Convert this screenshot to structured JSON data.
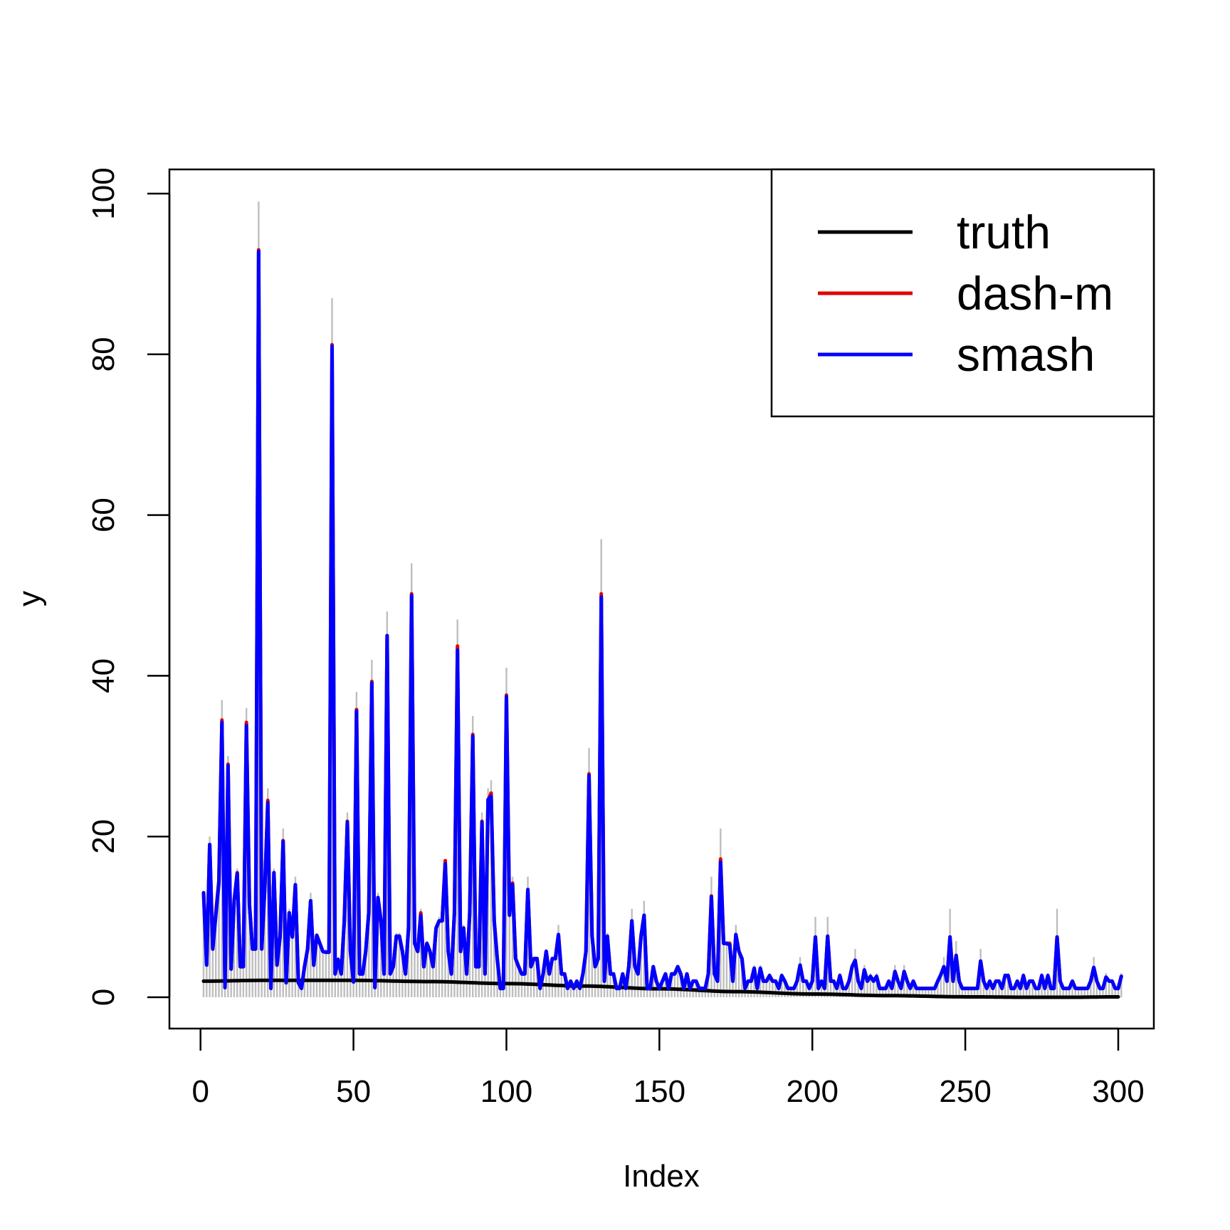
{
  "chart_data": {
    "type": "line",
    "xlabel": "Index",
    "ylabel": "y",
    "xlim": [
      1,
      300
    ],
    "ylim": [
      0,
      100
    ],
    "x_ticks": [
      0,
      50,
      100,
      150,
      200,
      250,
      300
    ],
    "y_ticks": [
      0,
      20,
      40,
      60,
      80,
      100
    ],
    "legend_position": "top-right",
    "observed": {
      "type": "histogram-bars",
      "color": "#bebebe",
      "values": [
        13,
        4,
        20,
        8,
        12,
        15,
        37,
        1,
        30,
        4,
        12,
        16,
        4,
        4,
        36,
        12,
        6,
        6,
        99,
        6,
        14,
        26,
        1,
        16,
        4,
        8,
        21,
        2,
        11,
        8,
        15,
        2,
        1,
        4,
        6,
        13,
        4,
        8,
        7,
        6,
        6,
        6,
        87,
        3,
        5,
        3,
        10,
        23,
        6,
        2,
        38,
        3,
        3,
        6,
        11,
        42,
        1,
        13,
        10,
        3,
        48,
        3,
        4,
        8,
        8,
        6,
        3,
        9,
        54,
        7,
        6,
        11,
        4,
        7,
        6,
        4,
        9,
        10,
        10,
        17,
        6,
        3,
        11,
        47,
        6,
        9,
        3,
        11,
        35,
        4,
        4,
        23,
        3,
        26,
        27,
        10,
        5,
        1,
        1,
        41,
        10,
        15,
        5,
        4,
        3,
        3,
        15,
        4,
        5,
        5,
        1,
        3,
        6,
        3,
        5,
        5,
        9,
        3,
        3,
        1,
        2,
        1,
        2,
        1,
        3,
        6,
        31,
        8,
        4,
        5,
        57,
        2,
        8,
        3,
        3,
        1,
        1,
        3,
        1,
        4,
        11,
        4,
        3,
        8,
        12,
        1,
        1,
        4,
        2,
        1,
        2,
        3,
        1,
        3,
        3,
        4,
        3,
        1,
        3,
        1,
        2,
        2,
        1,
        1,
        1,
        3,
        15,
        3,
        2,
        21,
        7,
        7,
        7,
        2,
        9,
        6,
        5,
        1,
        2,
        2,
        4,
        1,
        4,
        2,
        2,
        3,
        2,
        2,
        1,
        3,
        2,
        1,
        1,
        1,
        2,
        5,
        2,
        2,
        1,
        2,
        10,
        1,
        2,
        1,
        10,
        2,
        2,
        1,
        3,
        1,
        1,
        2,
        4,
        6,
        2,
        1,
        4,
        2,
        3,
        2,
        3,
        1,
        1,
        1,
        2,
        1,
        4,
        2,
        1,
        4,
        2,
        1,
        2,
        1,
        1,
        1,
        1,
        1,
        1,
        1,
        2,
        3,
        5,
        2,
        11,
        2,
        7,
        2,
        1,
        1,
        1,
        1,
        1,
        1,
        6,
        2,
        1,
        2,
        1,
        2,
        2,
        1,
        3,
        3,
        1,
        1,
        2,
        1,
        3,
        1,
        2,
        2,
        1,
        1,
        3,
        1,
        3,
        1,
        1,
        11,
        2,
        1,
        1,
        1,
        2,
        1,
        1,
        1,
        1,
        1,
        2,
        5,
        2,
        1,
        1,
        3,
        2,
        2,
        1,
        1,
        3
      ]
    },
    "series": [
      {
        "name": "truth",
        "color": "#000000",
        "kind": "smooth",
        "knots_x": [
          1,
          20,
          50,
          75,
          100,
          125,
          150,
          175,
          200,
          225,
          250,
          270,
          285,
          300
        ],
        "knots_y": [
          2.0,
          2.1,
          2.1,
          1.95,
          1.7,
          1.4,
          1.05,
          0.7,
          0.4,
          0.2,
          0.05,
          0.0,
          0.0,
          0.05
        ]
      },
      {
        "name": "dash-m",
        "color": "#e00000",
        "values": [
          13,
          4.2,
          19,
          6,
          10.5,
          14.5,
          34.5,
          1.2,
          29,
          3.5,
          12,
          15.5,
          3.8,
          3.8,
          34.2,
          11.5,
          6,
          6,
          93,
          6,
          13.5,
          24.5,
          1.1,
          15.5,
          4,
          7.5,
          19.5,
          1.8,
          10.5,
          7.5,
          14,
          1.8,
          1.1,
          3.8,
          6,
          12,
          4,
          7.7,
          6.7,
          5.7,
          5.6,
          5.6,
          81.2,
          2.9,
          4.7,
          2.9,
          9.5,
          21.9,
          5.7,
          1.9,
          35.8,
          2.9,
          2.9,
          5.7,
          10.5,
          39.3,
          1.2,
          12.4,
          9.5,
          2.9,
          45,
          2.9,
          3.8,
          7.6,
          7.6,
          5.7,
          2.9,
          8.6,
          50.2,
          6.7,
          5.7,
          10.5,
          3.8,
          6.7,
          5.7,
          3.8,
          8.6,
          9.5,
          9.5,
          17,
          5.7,
          2.9,
          10.5,
          43.7,
          5.7,
          8.6,
          2.9,
          10.5,
          32.7,
          3.8,
          3.8,
          21.9,
          2.9,
          24.5,
          25.4,
          9.5,
          4.8,
          1.1,
          1.1,
          37.6,
          10.5,
          14.2,
          4.8,
          3.8,
          2.9,
          2.9,
          13.4,
          3.8,
          4.8,
          4.8,
          1.1,
          2.9,
          5.7,
          2.9,
          4.8,
          4.8,
          7.8,
          2.9,
          2.9,
          1.1,
          2,
          1.1,
          2,
          1.1,
          2.9,
          5.7,
          27.8,
          7.6,
          3.8,
          4.8,
          50.2,
          2,
          7.6,
          2.9,
          2.9,
          1.1,
          1.1,
          2.9,
          1.1,
          3.8,
          9.5,
          3.8,
          2.9,
          7.6,
          10.2,
          1.1,
          1.1,
          3.8,
          2,
          1.1,
          2,
          2.9,
          1.1,
          2.9,
          2.9,
          3.8,
          2.9,
          1.1,
          2.9,
          1.1,
          2,
          2,
          1.1,
          1.1,
          1.1,
          2.9,
          12.6,
          2.9,
          2,
          17.2,
          6.7,
          6.7,
          6.7,
          2,
          7.8,
          5.7,
          4.8,
          1.1,
          2,
          2,
          3.6,
          1.1,
          3.6,
          2,
          2,
          2.7,
          2,
          2,
          1.1,
          2.7,
          2,
          1.1,
          1.1,
          1.1,
          2,
          4,
          2,
          2,
          1.1,
          2,
          7.5,
          1.1,
          2,
          1.1,
          7.6,
          2,
          2,
          1.1,
          2.7,
          1.1,
          1.1,
          2,
          3.8,
          4.6,
          2,
          1.1,
          3.4,
          2,
          2.6,
          2,
          2.6,
          1.1,
          1.1,
          1.1,
          2,
          1.1,
          3.2,
          2,
          1.1,
          3.2,
          2,
          1.1,
          2,
          1.1,
          1.1,
          1.1,
          1.1,
          1.1,
          1.1,
          1.1,
          2,
          2.8,
          3.8,
          2,
          7.5,
          2,
          5.2,
          2,
          1.1,
          1.1,
          1.1,
          1.1,
          1.1,
          1.1,
          4.5,
          2,
          1.1,
          2,
          1.1,
          2,
          2,
          1.1,
          2.7,
          2.7,
          1.1,
          1.1,
          2,
          1.1,
          2.7,
          1.1,
          2,
          2,
          1.1,
          1.1,
          2.7,
          1.1,
          2.7,
          1.1,
          1.1,
          7.5,
          2,
          1.1,
          1.1,
          1.1,
          2,
          1.1,
          1.1,
          1.1,
          1.1,
          1.1,
          2,
          3.7,
          2,
          1.1,
          1.1,
          2.5,
          2,
          2,
          1.1,
          1.1,
          2.6
        ]
      },
      {
        "name": "smash",
        "color": "#0000ff",
        "values": [
          13,
          4,
          19,
          6,
          10.2,
          14.2,
          34.2,
          1.2,
          28.8,
          3.5,
          12,
          15.4,
          3.8,
          3.8,
          33.8,
          11.5,
          6,
          6,
          92.8,
          6,
          13.5,
          24.2,
          1.1,
          15.5,
          4,
          7.5,
          19.4,
          1.8,
          10.5,
          7.5,
          14,
          1.8,
          1.1,
          3.8,
          6,
          12,
          4,
          7.7,
          6.7,
          5.7,
          5.6,
          5.6,
          81,
          2.9,
          4.7,
          2.9,
          9.5,
          21.8,
          5.7,
          1.9,
          35.6,
          2.9,
          2.9,
          5.7,
          10.5,
          39.1,
          1.2,
          12.4,
          9.5,
          2.9,
          45,
          2.9,
          3.8,
          7.6,
          7.6,
          5.7,
          2.9,
          8.6,
          50,
          6.7,
          5.7,
          10.2,
          3.8,
          6.7,
          5.7,
          3.8,
          8.6,
          9.5,
          9.5,
          16.6,
          5.7,
          2.9,
          10.5,
          43.2,
          5.7,
          8.6,
          2.9,
          10.5,
          32.5,
          3.8,
          3.8,
          21.8,
          2.9,
          24.6,
          25,
          9.5,
          4.8,
          1.1,
          1.1,
          37.4,
          10.2,
          14,
          4.8,
          3.8,
          2.9,
          2.9,
          13.4,
          3.8,
          4.8,
          4.8,
          1.1,
          2.9,
          5.7,
          2.9,
          4.8,
          4.8,
          7.8,
          2.9,
          2.9,
          1.1,
          2,
          1.1,
          2,
          1.1,
          2.9,
          5.7,
          27.6,
          7.6,
          3.8,
          4.8,
          49.8,
          2,
          7.6,
          2.9,
          2.9,
          1.1,
          1.1,
          2.9,
          1.1,
          3.8,
          9.5,
          3.8,
          2.9,
          7.6,
          10.2,
          1.1,
          1.1,
          3.8,
          2,
          1.1,
          2,
          2.9,
          1.1,
          2.9,
          2.9,
          3.8,
          2.9,
          1.1,
          2.9,
          1.1,
          2,
          2,
          1.1,
          1.1,
          1.1,
          2.9,
          12.5,
          2.9,
          2,
          16.8,
          6.7,
          6.7,
          6.5,
          2,
          7.8,
          5.7,
          4.8,
          1.1,
          2,
          2,
          3.6,
          1.1,
          3.6,
          2,
          2,
          2.7,
          2,
          2,
          1.1,
          2.7,
          2,
          1.1,
          1.1,
          1.1,
          2,
          4,
          2,
          2,
          1.1,
          2,
          7.5,
          1.1,
          2,
          1.1,
          7.6,
          2,
          2,
          1.1,
          2.7,
          1.1,
          1.1,
          2,
          3.8,
          4.6,
          2,
          1.1,
          3.4,
          2,
          2.6,
          2,
          2.6,
          1.1,
          1.1,
          1.1,
          2,
          1.1,
          3.2,
          2,
          1.1,
          3.2,
          2,
          1.1,
          2,
          1.1,
          1.1,
          1.1,
          1.1,
          1.1,
          1.1,
          1.1,
          2,
          2.8,
          3.8,
          2,
          7.5,
          2,
          5.2,
          2,
          1.1,
          1.1,
          1.1,
          1.1,
          1.1,
          1.1,
          4.5,
          2,
          1.1,
          2,
          1.1,
          2,
          2,
          1.1,
          2.7,
          2.7,
          1.1,
          1.1,
          2,
          1.1,
          2.7,
          1.1,
          2,
          2,
          1.1,
          1.1,
          2.7,
          1.1,
          2.7,
          1.1,
          1.1,
          7.5,
          2,
          1.1,
          1.1,
          1.1,
          2,
          1.1,
          1.1,
          1.1,
          1.1,
          1.1,
          2,
          3.7,
          2,
          1.1,
          1.1,
          2.5,
          2,
          2,
          1.1,
          1.1,
          2.6
        ]
      }
    ]
  }
}
